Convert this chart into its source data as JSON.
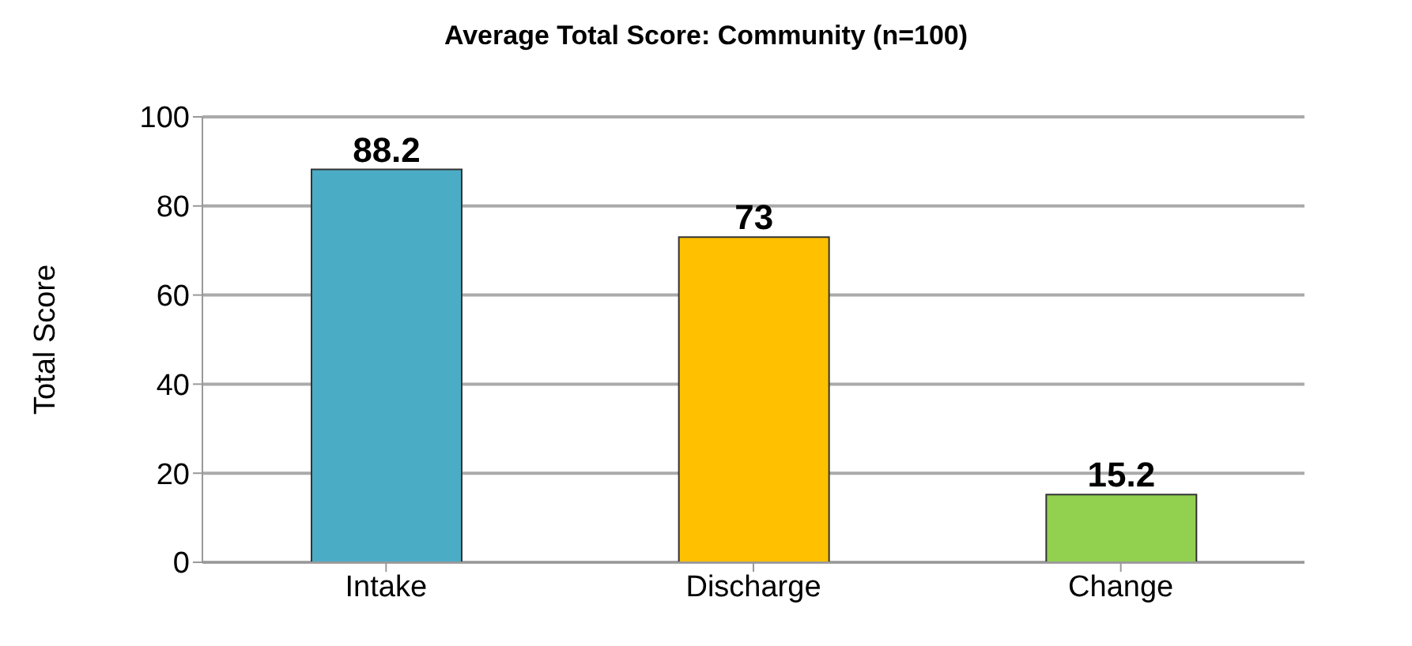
{
  "chart_data": {
    "type": "bar",
    "title": "Average Total Score: Community (n=100)",
    "ylabel": "Total Score",
    "categories": [
      "Intake",
      "Discharge",
      "Change"
    ],
    "values": [
      88.2,
      73,
      15.2
    ],
    "colors": [
      "#4bacc6",
      "#ffc000",
      "#92d050"
    ],
    "ylim": [
      0,
      100
    ],
    "yticks": [
      0,
      20,
      40,
      60,
      80,
      100
    ],
    "grid": "y",
    "data_labels": true
  }
}
